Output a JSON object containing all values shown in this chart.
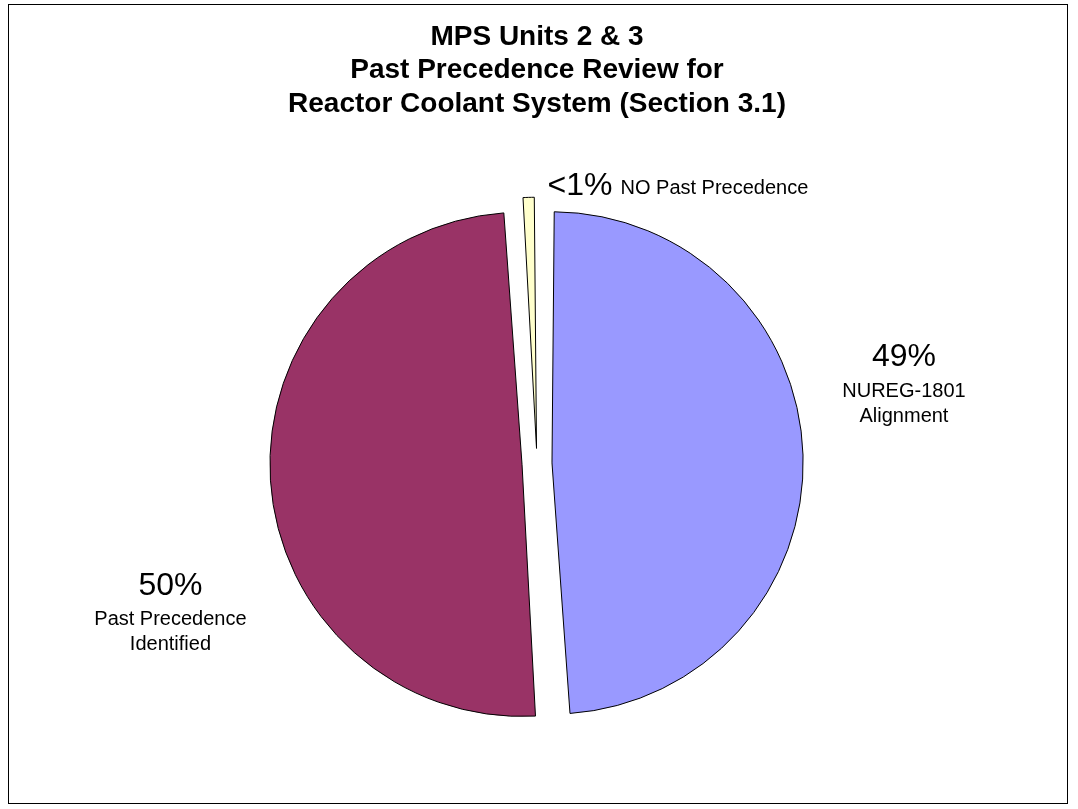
{
  "chart_data": {
    "type": "pie",
    "title": "MPS Units 2 & 3\nPast Precedence Review for\nReactor Coolant System (Section 3.1)",
    "categories": [
      "NUREG-1801 Alignment",
      "Past Precedence Identified",
      "NO Past Precedence"
    ],
    "values": [
      49,
      50,
      1
    ],
    "colors": [
      "#9999ff",
      "#993366",
      "#ffffcc"
    ],
    "value_labels": [
      "49%",
      "50%",
      "<1%"
    ],
    "legend": false
  }
}
